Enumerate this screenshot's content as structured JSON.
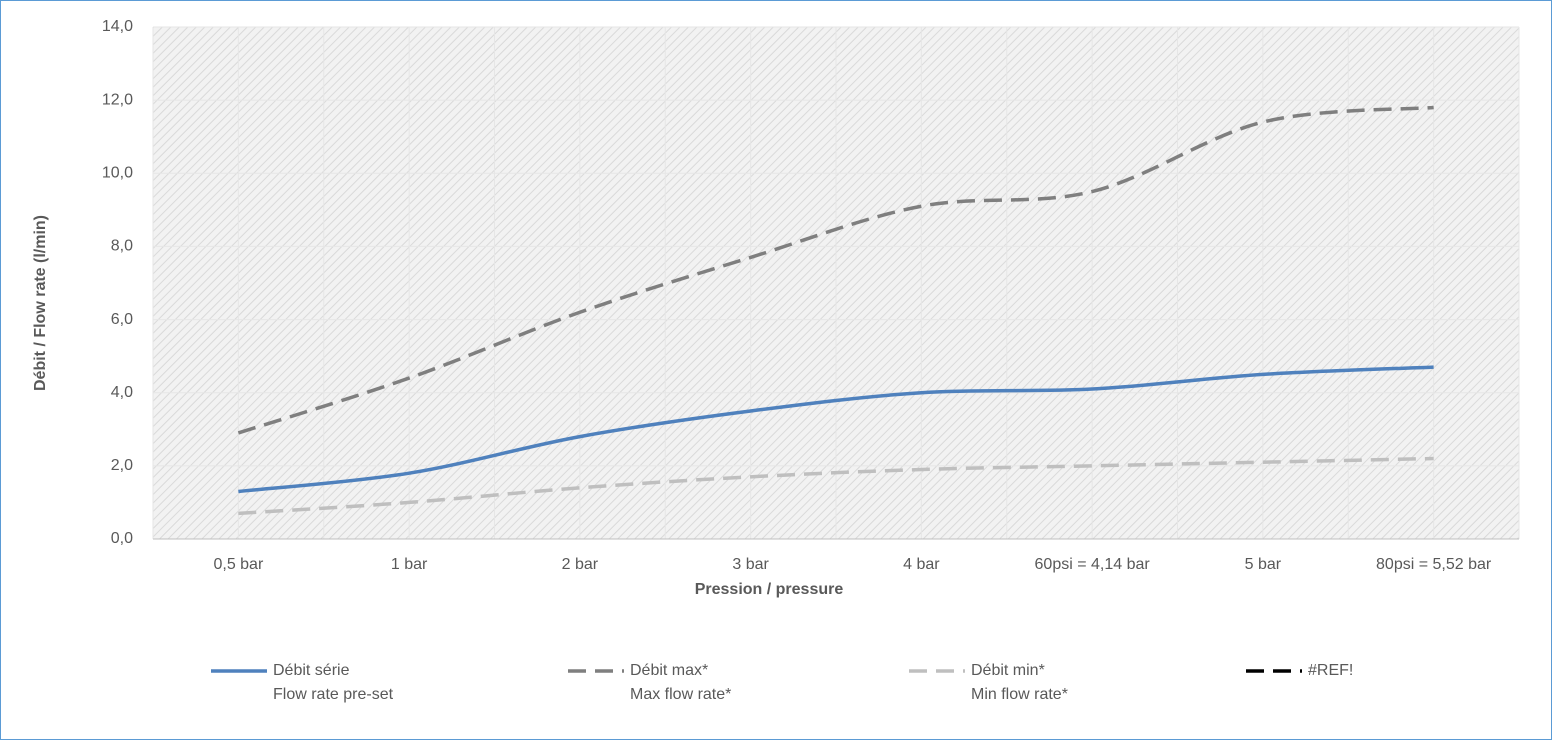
{
  "chart_data": {
    "type": "line",
    "x_label": "Pression / pressure",
    "y_label": "Débit / Flow rate (l/min)",
    "categories": [
      "0,5 bar",
      "1 bar",
      "2 bar",
      "3 bar",
      "4 bar",
      "60psi = 4,14 bar",
      "5 bar",
      "80psi = 5,52 bar"
    ],
    "series": [
      {
        "name": "Débit série\nFlow rate pre-set",
        "color": "#4f81bd",
        "dash": false,
        "values": [
          1.3,
          1.8,
          2.8,
          3.5,
          4.0,
          4.1,
          4.5,
          4.7
        ]
      },
      {
        "name": "Débit max*\nMax flow rate*",
        "color": "#7f7f7f",
        "dash": true,
        "values": [
          2.9,
          4.4,
          6.2,
          7.7,
          9.1,
          9.5,
          11.4,
          11.8
        ]
      },
      {
        "name": "Débit min*\nMin flow rate*",
        "color": "#bfbfbf",
        "dash": true,
        "values": [
          0.7,
          1.0,
          1.4,
          1.7,
          1.9,
          2.0,
          2.1,
          2.2
        ]
      },
      {
        "name": "#REF!",
        "color": "#000000",
        "dash": true,
        "values": [
          null,
          null,
          null,
          null,
          null,
          null,
          null,
          null
        ]
      }
    ],
    "ylim": [
      0,
      14
    ],
    "yticks": [
      {
        "value": 0,
        "label": "0,0"
      },
      {
        "value": 2,
        "label": "2,0"
      },
      {
        "value": 4,
        "label": "4,0"
      },
      {
        "value": 6,
        "label": "6,0"
      },
      {
        "value": 8,
        "label": "8,0"
      },
      {
        "value": 10,
        "label": "10,0"
      },
      {
        "value": 12,
        "label": "12,0"
      },
      {
        "value": 14,
        "label": "14,0"
      }
    ],
    "grid": true,
    "smooth": true,
    "legend": "bottom"
  }
}
